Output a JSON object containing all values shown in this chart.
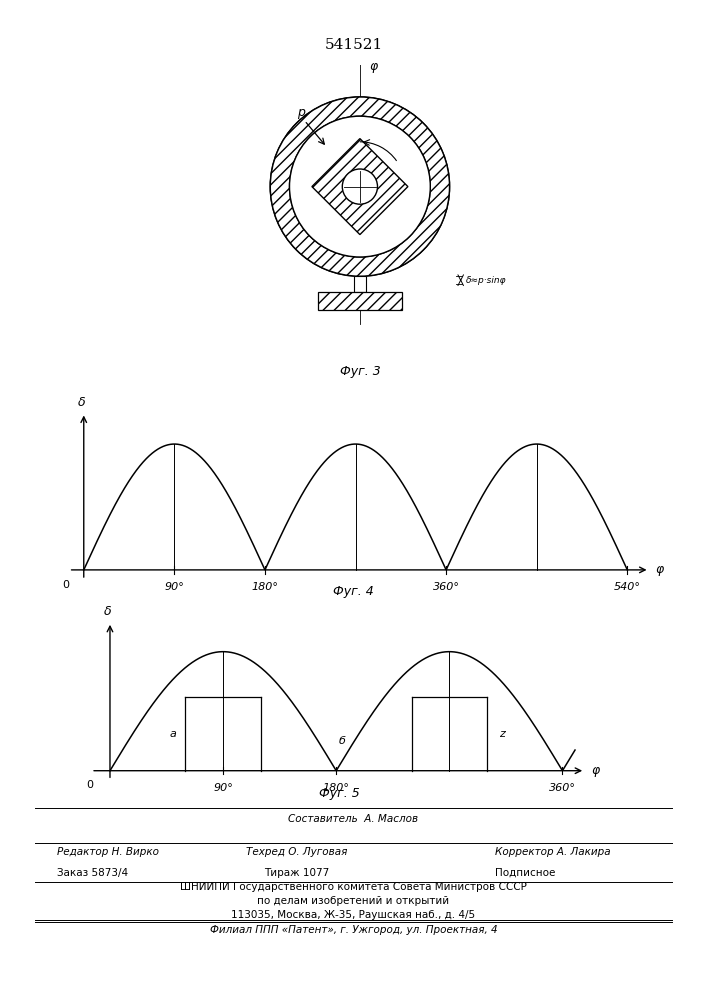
{
  "title": "541521",
  "title_fontsize": 11,
  "bg_color": "#ffffff",
  "fig4_xlabel": "φ",
  "fig4_ylabel": "δ",
  "fig4_xticks": [
    90,
    180,
    360,
    540
  ],
  "fig4_xtick_labels": [
    "90°",
    "180°",
    "360°",
    "540°"
  ],
  "fig4_caption": "Фуг. 4",
  "fig5_xlabel": "φ",
  "fig5_ylabel": "δ",
  "fig5_xticks": [
    90,
    180,
    360
  ],
  "fig5_xtick_labels": [
    "90°",
    "180°",
    "360°"
  ],
  "fig5_caption": "Фуг. 5",
  "fig3_caption": "Фуг. 3",
  "fig3_label_phi": "φ",
  "fig3_label_p": "p",
  "fig3_label_delta": "δ≈p·sinφ",
  "footer_line1": "Составитель  А. Маслов",
  "footer_line2_left": "Редактор Н. Вирко",
  "footer_line2_mid": "Техред О. Луговая",
  "footer_line2_right": "Корректор А. Лакира",
  "footer_line3_left": "Заказ 5873/4",
  "footer_line3_mid": "Тираж 1077",
  "footer_line3_right": "Подписное",
  "footer_line4": "ШНИИПИ Государственного комитета Совета Министров СССР",
  "footer_line5": "по делам изобретений и открытий",
  "footer_line6": "113035, Москва, Ж-35, Раушская наб., д. 4/5",
  "footer_line7": "Филиал ППП «Патент», г. Ужгород, ул. Проектная, 4",
  "line_color": "#000000",
  "font_color": "#000000"
}
